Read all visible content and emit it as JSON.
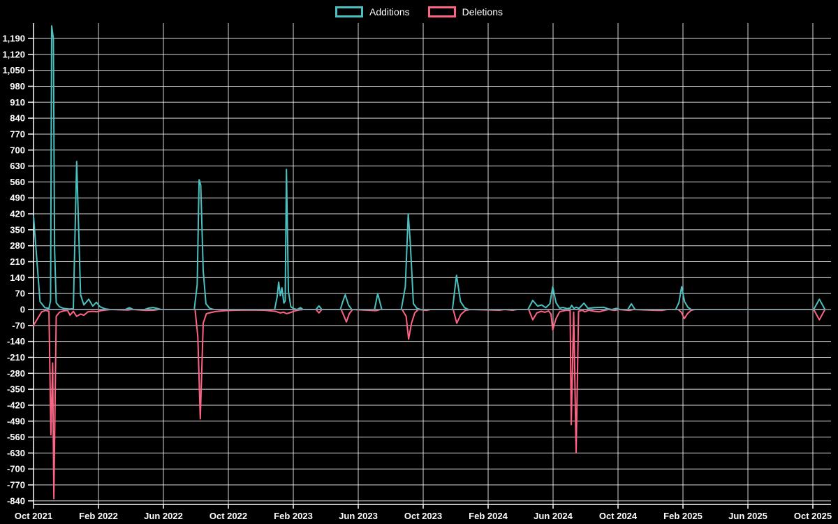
{
  "legend": {
    "items": [
      {
        "label": "Additions",
        "color": "#4BC0C0"
      },
      {
        "label": "Deletions",
        "color": "#FF6384"
      }
    ]
  },
  "chart_data": {
    "type": "line",
    "title": "",
    "xlabel": "",
    "ylabel": "",
    "background_color": "#000000",
    "grid_color": "rgba(255,255,255,0.85)",
    "axis_color": "#ffffff",
    "tick_label_color": "#ffffff",
    "zero_baseline_color": "#85929C",
    "grid": true,
    "legend_position": "top",
    "y_axis": {
      "tick_step": 70,
      "ylim": [
        -855,
        1257
      ],
      "ticks": [
        {
          "v": 1190,
          "label": "1,190"
        },
        {
          "v": 1120,
          "label": "1,120"
        },
        {
          "v": 1050,
          "label": "1,050"
        },
        {
          "v": 980,
          "label": "980"
        },
        {
          "v": 910,
          "label": "910"
        },
        {
          "v": 840,
          "label": "840"
        },
        {
          "v": 770,
          "label": "770"
        },
        {
          "v": 700,
          "label": "700"
        },
        {
          "v": 630,
          "label": "630"
        },
        {
          "v": 560,
          "label": "560"
        },
        {
          "v": 490,
          "label": "490"
        },
        {
          "v": 420,
          "label": "420"
        },
        {
          "v": 350,
          "label": "350"
        },
        {
          "v": 280,
          "label": "280"
        },
        {
          "v": 210,
          "label": "210"
        },
        {
          "v": 140,
          "label": "140"
        },
        {
          "v": 70,
          "label": "70"
        },
        {
          "v": 0,
          "label": "0"
        },
        {
          "v": -70,
          "label": "-70"
        },
        {
          "v": -140,
          "label": "-140"
        },
        {
          "v": -210,
          "label": "-210"
        },
        {
          "v": -280,
          "label": "-280"
        },
        {
          "v": -350,
          "label": "-350"
        },
        {
          "v": -420,
          "label": "-420"
        },
        {
          "v": -490,
          "label": "-490"
        },
        {
          "v": -560,
          "label": "-560"
        },
        {
          "v": -630,
          "label": "-630"
        },
        {
          "v": -700,
          "label": "-700"
        },
        {
          "v": -770,
          "label": "-770"
        },
        {
          "v": -840,
          "label": "-840"
        }
      ]
    },
    "x_axis": {
      "unit": "months since Oct 2021",
      "xlim": [
        0,
        49.1
      ],
      "labels": [
        {
          "m": 0,
          "label": "Oct 2021"
        },
        {
          "m": 4,
          "label": "Feb 2022"
        },
        {
          "m": 8,
          "label": "Jun 2022"
        },
        {
          "m": 12,
          "label": "Oct 2022"
        },
        {
          "m": 16,
          "label": "Feb 2023"
        },
        {
          "m": 20,
          "label": "Jun 2023"
        },
        {
          "m": 24,
          "label": "Oct 2023"
        },
        {
          "m": 28,
          "label": "Feb 2024"
        },
        {
          "m": 32,
          "label": "Jun 2024"
        },
        {
          "m": 36,
          "label": "Oct 2024"
        },
        {
          "m": 40,
          "label": "Feb 2025"
        },
        {
          "m": 44,
          "label": "Jun 2025"
        },
        {
          "m": 48,
          "label": "Oct 2025"
        }
      ]
    },
    "zero_baseline_range": [
      0,
      48.75
    ],
    "series": [
      {
        "name": "Additions",
        "color": "#4BC0C0",
        "points": [
          [
            0,
            410
          ],
          [
            0.4,
            35
          ],
          [
            0.7,
            8
          ],
          [
            0.95,
            5
          ],
          [
            1.05,
            40
          ],
          [
            1.12,
            1245
          ],
          [
            1.22,
            1190
          ],
          [
            1.3,
            260
          ],
          [
            1.4,
            30
          ],
          [
            1.6,
            12
          ],
          [
            1.85,
            5
          ],
          [
            2.2,
            2
          ],
          [
            2.45,
            3
          ],
          [
            2.66,
            650
          ],
          [
            2.9,
            65
          ],
          [
            3.1,
            20
          ],
          [
            3.4,
            45
          ],
          [
            3.65,
            15
          ],
          [
            3.87,
            32
          ],
          [
            4.1,
            12
          ],
          [
            4.4,
            3
          ],
          [
            4.7,
            0
          ],
          [
            5.65,
            0
          ],
          [
            5.9,
            8
          ],
          [
            6.15,
            0
          ],
          [
            6.85,
            0
          ],
          [
            7.1,
            6
          ],
          [
            7.35,
            9
          ],
          [
            7.6,
            5
          ],
          [
            7.85,
            0
          ],
          [
            9.9,
            0
          ],
          [
            10.08,
            110
          ],
          [
            10.2,
            570
          ],
          [
            10.3,
            545
          ],
          [
            10.45,
            170
          ],
          [
            10.62,
            25
          ],
          [
            10.85,
            5
          ],
          [
            11.1,
            0
          ],
          [
            14.85,
            0
          ],
          [
            15.0,
            55
          ],
          [
            15.1,
            120
          ],
          [
            15.2,
            60
          ],
          [
            15.3,
            95
          ],
          [
            15.42,
            28
          ],
          [
            15.5,
            38
          ],
          [
            15.58,
            615
          ],
          [
            15.7,
            80
          ],
          [
            15.85,
            12
          ],
          [
            16.05,
            3
          ],
          [
            16.25,
            0
          ],
          [
            16.35,
            5
          ],
          [
            16.45,
            8
          ],
          [
            16.6,
            0
          ],
          [
            17.4,
            0
          ],
          [
            17.58,
            16
          ],
          [
            17.76,
            0
          ],
          [
            18.9,
            0
          ],
          [
            19.05,
            35
          ],
          [
            19.2,
            65
          ],
          [
            19.4,
            20
          ],
          [
            19.6,
            0
          ],
          [
            21.0,
            0
          ],
          [
            21.2,
            70
          ],
          [
            21.45,
            0
          ],
          [
            22.65,
            0
          ],
          [
            22.9,
            100
          ],
          [
            23.08,
            420
          ],
          [
            23.2,
            300
          ],
          [
            23.4,
            25
          ],
          [
            23.62,
            5
          ],
          [
            23.85,
            0
          ],
          [
            25.8,
            0
          ],
          [
            26.05,
            150
          ],
          [
            26.3,
            35
          ],
          [
            26.55,
            8
          ],
          [
            26.8,
            0
          ],
          [
            30.45,
            0
          ],
          [
            30.75,
            40
          ],
          [
            31.05,
            15
          ],
          [
            31.3,
            20
          ],
          [
            31.55,
            8
          ],
          [
            31.8,
            25
          ],
          [
            31.98,
            100
          ],
          [
            32.18,
            30
          ],
          [
            32.4,
            6
          ],
          [
            32.62,
            9
          ],
          [
            32.85,
            4
          ],
          [
            33.05,
            6
          ],
          [
            33.15,
            18
          ],
          [
            33.28,
            4
          ],
          [
            33.42,
            10
          ],
          [
            33.6,
            5
          ],
          [
            33.9,
            28
          ],
          [
            34.15,
            5
          ],
          [
            34.5,
            8
          ],
          [
            34.8,
            9
          ],
          [
            35.1,
            10
          ],
          [
            35.38,
            3
          ],
          [
            35.62,
            0
          ],
          [
            35.9,
            5
          ],
          [
            36.12,
            0
          ],
          [
            36.6,
            0
          ],
          [
            36.82,
            25
          ],
          [
            37.05,
            0
          ],
          [
            39.55,
            0
          ],
          [
            39.75,
            30
          ],
          [
            39.92,
            100
          ],
          [
            40.1,
            35
          ],
          [
            40.3,
            10
          ],
          [
            40.5,
            0
          ],
          [
            48.05,
            0
          ],
          [
            48.4,
            45
          ],
          [
            48.75,
            0
          ]
        ]
      },
      {
        "name": "Deletions",
        "color": "#FF6384",
        "points": [
          [
            0,
            -70
          ],
          [
            0.25,
            -40
          ],
          [
            0.5,
            -10
          ],
          [
            0.75,
            -4
          ],
          [
            0.95,
            -8
          ],
          [
            1.07,
            -550
          ],
          [
            1.18,
            -235
          ],
          [
            1.25,
            -830
          ],
          [
            1.4,
            -30
          ],
          [
            1.6,
            -12
          ],
          [
            1.85,
            -6
          ],
          [
            2.1,
            -4
          ],
          [
            2.25,
            -25
          ],
          [
            2.45,
            -8
          ],
          [
            2.66,
            -30
          ],
          [
            2.9,
            -20
          ],
          [
            3.1,
            -25
          ],
          [
            3.35,
            -10
          ],
          [
            3.65,
            -8
          ],
          [
            3.9,
            -10
          ],
          [
            4.15,
            -5
          ],
          [
            4.45,
            -2
          ],
          [
            4.75,
            0
          ],
          [
            5.8,
            -2
          ],
          [
            6.1,
            0
          ],
          [
            6.95,
            -4
          ],
          [
            7.4,
            -3
          ],
          [
            7.7,
            0
          ],
          [
            9.95,
            0
          ],
          [
            10.12,
            -120
          ],
          [
            10.27,
            -480
          ],
          [
            10.45,
            -60
          ],
          [
            10.65,
            -18
          ],
          [
            11.2,
            -9
          ],
          [
            11.8,
            -5
          ],
          [
            12.5,
            -3
          ],
          [
            13.3,
            -2
          ],
          [
            14.2,
            -3
          ],
          [
            14.9,
            -8
          ],
          [
            15.2,
            -15
          ],
          [
            15.4,
            -12
          ],
          [
            15.58,
            -18
          ],
          [
            15.75,
            -15
          ],
          [
            16.05,
            -7
          ],
          [
            16.35,
            -2
          ],
          [
            16.6,
            0
          ],
          [
            17.4,
            0
          ],
          [
            17.58,
            -15
          ],
          [
            17.76,
            0
          ],
          [
            18.95,
            0
          ],
          [
            19.1,
            -25
          ],
          [
            19.27,
            -55
          ],
          [
            19.45,
            -18
          ],
          [
            19.65,
            0
          ],
          [
            21.1,
            -5
          ],
          [
            21.35,
            0
          ],
          [
            22.7,
            0
          ],
          [
            22.95,
            -30
          ],
          [
            23.1,
            -130
          ],
          [
            23.28,
            -60
          ],
          [
            23.48,
            -15
          ],
          [
            23.7,
            0
          ],
          [
            24.2,
            -4
          ],
          [
            24.45,
            0
          ],
          [
            25.85,
            0
          ],
          [
            26.07,
            -60
          ],
          [
            26.32,
            -22
          ],
          [
            26.6,
            -4
          ],
          [
            26.9,
            0
          ],
          [
            28.7,
            -3
          ],
          [
            29.0,
            0
          ],
          [
            29.5,
            -3
          ],
          [
            29.8,
            0
          ],
          [
            30.5,
            0
          ],
          [
            30.75,
            -45
          ],
          [
            31.0,
            -15
          ],
          [
            31.25,
            -8
          ],
          [
            31.5,
            -12
          ],
          [
            31.72,
            -6
          ],
          [
            31.87,
            -20
          ],
          [
            31.98,
            -90
          ],
          [
            32.18,
            -40
          ],
          [
            32.4,
            -10
          ],
          [
            32.62,
            -6
          ],
          [
            32.85,
            -3
          ],
          [
            33.05,
            -5
          ],
          [
            33.12,
            -505
          ],
          [
            33.27,
            -12
          ],
          [
            33.42,
            -630
          ],
          [
            33.57,
            -8
          ],
          [
            33.8,
            -3
          ],
          [
            33.95,
            -10
          ],
          [
            34.2,
            -3
          ],
          [
            34.55,
            -8
          ],
          [
            34.85,
            -10
          ],
          [
            35.1,
            -5
          ],
          [
            35.4,
            0
          ],
          [
            35.8,
            -4
          ],
          [
            36.05,
            0
          ],
          [
            36.7,
            -4
          ],
          [
            36.95,
            0
          ],
          [
            38.4,
            -4
          ],
          [
            38.7,
            -4
          ],
          [
            39.0,
            0
          ],
          [
            39.7,
            0
          ],
          [
            39.9,
            -12
          ],
          [
            40.08,
            -40
          ],
          [
            40.28,
            -18
          ],
          [
            40.5,
            -4
          ],
          [
            40.7,
            0
          ],
          [
            48.05,
            0
          ],
          [
            48.4,
            -45
          ],
          [
            48.75,
            0
          ]
        ]
      }
    ]
  }
}
